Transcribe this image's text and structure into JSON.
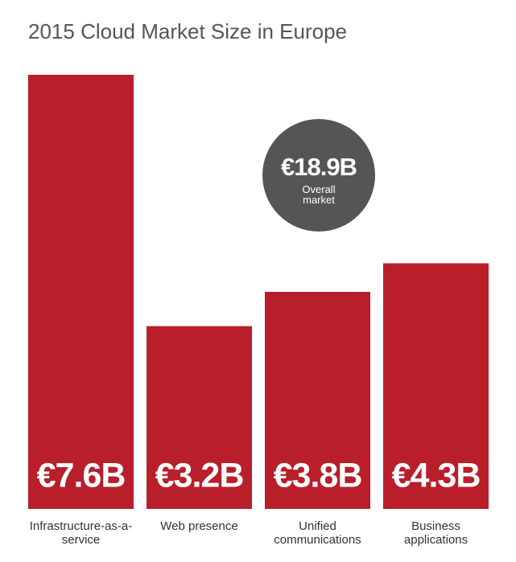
{
  "chart_data": {
    "type": "bar",
    "title": "2015 Cloud Market Size in Europe",
    "categories": [
      "Infrastructure-as-a-service",
      "Web presence",
      "Unified communications",
      "Business applications"
    ],
    "values": [
      7.6,
      3.2,
      3.8,
      4.3
    ],
    "value_labels": [
      "€7.6B",
      "€3.2B",
      "€3.8B",
      "€4.3B"
    ],
    "color": "#b81f2a",
    "annotation": {
      "text": "€18.9B",
      "caption": "Overall market",
      "color": "#555555"
    }
  }
}
